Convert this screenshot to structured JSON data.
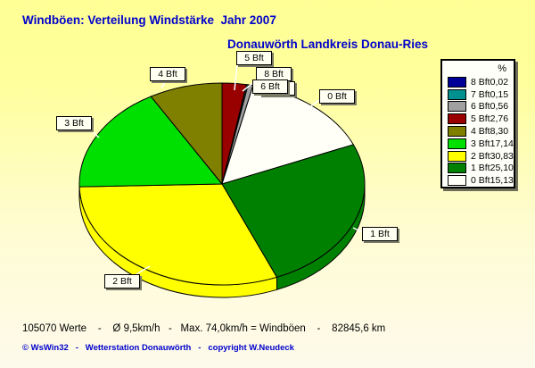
{
  "window": {
    "background_top": "#FFFF96",
    "background_bottom": "#FDFAEC",
    "accent_blue": "#0000CC"
  },
  "header": {
    "title": "Windböen: Verteilung Windstärke  Jahr 2007",
    "subtitle": "Donauwörth Landkreis Donau-Ries"
  },
  "legend": {
    "header": "%"
  },
  "footer": {
    "stats": "105070 Werte    -    Ø 9,5km/h   -   Max. 74,0km/h = Windböen    -    82845,6 km",
    "credit": "© WsWin32   -   Wetterstation Donauwörth   -   copyright W.Neudeck"
  },
  "chart_data": {
    "type": "pie",
    "style": "3d",
    "title": "Windböen: Verteilung Windstärke  Jahr 2007",
    "subtitle": "Donauwörth Landkreis Donau-Ries",
    "unit": "%",
    "legend_position": "right",
    "start_angle_deg": 0,
    "direction": "clockwise",
    "series": [
      {
        "label": "8 Bft",
        "value": 0.02,
        "color": "#000099"
      },
      {
        "label": "7 Bft",
        "value": 0.15,
        "color": "#009090"
      },
      {
        "label": "6 Bft",
        "value": 0.56,
        "color": "#A0A0A0"
      },
      {
        "label": "5 Bft",
        "value": 2.76,
        "color": "#990000"
      },
      {
        "label": "4 Bft",
        "value": 8.3,
        "color": "#7F7F00"
      },
      {
        "label": "3 Bft",
        "value": 17.14,
        "color": "#00E000"
      },
      {
        "label": "2 Bft",
        "value": 30.83,
        "color": "#FFFF00"
      },
      {
        "label": "1 Bft",
        "value": 25.1,
        "color": "#008000"
      },
      {
        "label": "0 Bft",
        "value": 15.13,
        "color": "#FFFFF8"
      }
    ],
    "draw_order": [
      "5 Bft",
      "8 Bft",
      "7 Bft",
      "6 Bft",
      "0 Bft",
      "1 Bft",
      "2 Bft",
      "3 Bft",
      "4 Bft"
    ]
  }
}
